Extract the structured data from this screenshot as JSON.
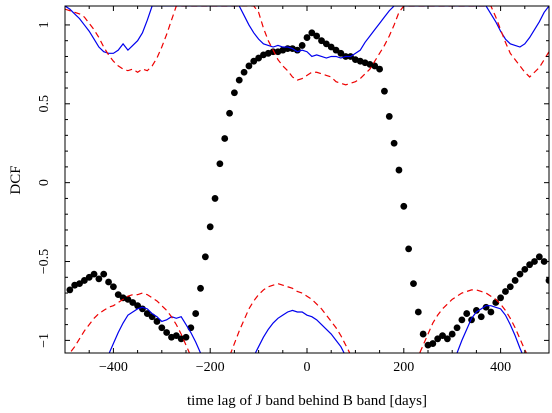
{
  "chart_data": {
    "type": "scatter",
    "title": "",
    "xlabel": "time lag of J band behind B band [days]",
    "ylabel": "DCF",
    "xlim": [
      -500,
      500
    ],
    "ylim": [
      -1.08,
      1.12
    ],
    "x_ticks": [
      -400,
      -200,
      0,
      200,
      400
    ],
    "x_tick_labels": [
      "−400",
      "−200",
      "0",
      "200",
      "400"
    ],
    "y_ticks": [
      -1,
      -0.5,
      0,
      0.5,
      1
    ],
    "y_tick_labels": [
      "−1",
      "−0.5",
      "0",
      "0.5",
      "1"
    ],
    "grid": false,
    "legend": "none",
    "series": [
      {
        "style": "points",
        "color": "#000000",
        "x": [
          -490,
          -480,
          -470,
          -460,
          -450,
          -440,
          -430,
          -420,
          -410,
          -400,
          -390,
          -380,
          -370,
          -360,
          -350,
          -340,
          -330,
          -320,
          -310,
          -300,
          -290,
          -280,
          -270,
          -260,
          -250,
          -240,
          -230,
          -220,
          -210,
          -200,
          -190,
          -180,
          -170,
          -160,
          -150,
          -140,
          -130,
          -120,
          -110,
          -100,
          -90,
          -80,
          -70,
          -60,
          -50,
          -40,
          -30,
          -20,
          -10,
          0,
          10,
          20,
          30,
          40,
          50,
          60,
          70,
          80,
          90,
          100,
          110,
          120,
          130,
          140,
          150,
          160,
          170,
          180,
          190,
          200,
          210,
          220,
          230,
          240,
          250,
          260,
          270,
          280,
          290,
          300,
          310,
          320,
          330,
          340,
          350,
          360,
          370,
          380,
          390,
          400,
          410,
          420,
          430,
          440,
          450,
          460,
          470,
          480,
          490,
          500
        ],
        "y": [
          -0.68,
          -0.65,
          -0.64,
          -0.62,
          -0.6,
          -0.58,
          -0.61,
          -0.58,
          -0.63,
          -0.66,
          -0.71,
          -0.73,
          -0.74,
          -0.76,
          -0.78,
          -0.8,
          -0.83,
          -0.85,
          -0.88,
          -0.92,
          -0.95,
          -0.98,
          -0.97,
          -0.99,
          -0.98,
          -0.92,
          -0.83,
          -0.67,
          -0.47,
          -0.28,
          -0.1,
          0.12,
          0.28,
          0.44,
          0.57,
          0.65,
          0.7,
          0.74,
          0.77,
          0.79,
          0.81,
          0.82,
          0.83,
          0.83,
          0.84,
          0.85,
          0.85,
          0.84,
          0.87,
          0.92,
          0.95,
          0.93,
          0.9,
          0.88,
          0.86,
          0.84,
          0.82,
          0.8,
          0.8,
          0.78,
          0.77,
          0.76,
          0.75,
          0.74,
          0.72,
          0.58,
          0.42,
          0.25,
          0.08,
          -0.15,
          -0.42,
          -0.64,
          -0.82,
          -0.96,
          -1.03,
          -1.02,
          -0.99,
          -0.97,
          -0.99,
          -0.96,
          -0.92,
          -0.87,
          -0.83,
          -0.87,
          -0.81,
          -0.85,
          -0.79,
          -0.82,
          -0.76,
          -0.73,
          -0.69,
          -0.66,
          -0.62,
          -0.58,
          -0.55,
          -0.52,
          -0.5,
          -0.47,
          -0.5,
          -0.62
        ]
      },
      {
        "style": "solid",
        "color": "#0000ee",
        "x": [
          -500,
          -490,
          -480,
          -470,
          -460,
          -450,
          -440,
          -430,
          -420,
          -410,
          -400,
          -390,
          -380,
          -370,
          -360,
          -350,
          -340,
          -330,
          -320,
          -310,
          -300,
          -290,
          -280,
          -270,
          -260,
          -250,
          -240,
          -230,
          -220,
          -210,
          -200,
          -190,
          -180,
          -170,
          -160,
          -150,
          -140,
          -130,
          -120,
          -110,
          -100,
          -90,
          -80,
          -70,
          -60,
          -50,
          -40,
          -30,
          -20,
          -10,
          0,
          10,
          20,
          30,
          40,
          50,
          60,
          70,
          80,
          90,
          100,
          110,
          120,
          130,
          140,
          150,
          160,
          170,
          180,
          190,
          200,
          210,
          220,
          230,
          240,
          250,
          260,
          270,
          280,
          290,
          300,
          310,
          320,
          330,
          340,
          350,
          360,
          370,
          380,
          390,
          400,
          410,
          420,
          430,
          440,
          450,
          460,
          470,
          480,
          490,
          500
        ],
        "y": [
          1.12,
          1.1,
          1.07,
          1.04,
          1.0,
          0.96,
          0.91,
          0.86,
          0.83,
          0.82,
          0.82,
          0.84,
          0.88,
          0.84,
          0.87,
          0.9,
          0.95,
          1.03,
          1.12,
          1.12,
          1.12,
          1.12,
          1.12,
          1.12,
          1.12,
          1.12,
          1.12,
          1.12,
          1.12,
          1.12,
          1.12,
          1.12,
          1.12,
          1.12,
          1.12,
          1.12,
          1.12,
          1.06,
          1.0,
          0.95,
          0.91,
          0.88,
          0.87,
          0.86,
          0.87,
          0.86,
          0.86,
          0.85,
          0.83,
          0.84,
          0.83,
          0.8,
          0.81,
          0.8,
          0.79,
          0.8,
          0.8,
          0.79,
          0.8,
          0.8,
          0.82,
          0.84,
          0.89,
          0.93,
          0.97,
          1.01,
          1.05,
          1.09,
          1.12,
          1.12,
          1.12,
          1.12,
          1.12,
          1.12,
          1.12,
          1.12,
          1.12,
          1.12,
          1.12,
          1.12,
          1.12,
          1.12,
          1.12,
          1.12,
          1.12,
          1.12,
          1.12,
          1.12,
          1.07,
          1.02,
          0.96,
          0.91,
          0.88,
          0.87,
          0.86,
          0.88,
          0.92,
          0.97,
          1.02,
          1.08,
          1.12
        ]
      },
      {
        "style": "dashed",
        "color": "#ee0000",
        "x": [
          -500,
          -490,
          -480,
          -470,
          -460,
          -450,
          -440,
          -430,
          -420,
          -410,
          -400,
          -390,
          -380,
          -370,
          -360,
          -350,
          -340,
          -330,
          -320,
          -310,
          -300,
          -290,
          -280,
          -270,
          -260,
          -250,
          -240,
          -230,
          -220,
          -210,
          -200,
          -190,
          -180,
          -170,
          -160,
          -150,
          -140,
          -130,
          -120,
          -110,
          -100,
          -90,
          -80,
          -70,
          -60,
          -50,
          -40,
          -30,
          -20,
          -10,
          0,
          10,
          20,
          30,
          40,
          50,
          60,
          70,
          80,
          90,
          100,
          110,
          120,
          130,
          140,
          150,
          160,
          170,
          180,
          190,
          200,
          210,
          220,
          230,
          240,
          250,
          260,
          270,
          280,
          290,
          300,
          310,
          320,
          330,
          340,
          350,
          360,
          370,
          380,
          390,
          400,
          410,
          420,
          430,
          440,
          450,
          460,
          470,
          480,
          490,
          500
        ],
        "y": [
          1.1,
          1.09,
          1.08,
          1.07,
          1.05,
          1.01,
          0.97,
          0.92,
          0.86,
          0.81,
          0.77,
          0.74,
          0.72,
          0.71,
          0.72,
          0.7,
          0.72,
          0.71,
          0.74,
          0.79,
          0.86,
          0.94,
          1.03,
          1.12,
          1.12,
          1.12,
          1.12,
          1.12,
          1.12,
          1.12,
          1.12,
          1.12,
          1.12,
          1.12,
          1.12,
          1.12,
          1.12,
          1.12,
          1.12,
          1.12,
          1.08,
          0.98,
          0.9,
          0.84,
          0.78,
          0.74,
          0.71,
          0.67,
          0.65,
          0.66,
          0.68,
          0.7,
          0.7,
          0.69,
          0.68,
          0.67,
          0.64,
          0.63,
          0.62,
          0.63,
          0.64,
          0.66,
          0.69,
          0.72,
          0.77,
          0.82,
          0.87,
          0.93,
          1.0,
          1.08,
          1.12,
          1.12,
          1.12,
          1.12,
          1.12,
          1.12,
          1.12,
          1.12,
          1.12,
          1.12,
          1.12,
          1.12,
          1.12,
          1.12,
          1.12,
          1.12,
          1.12,
          1.12,
          1.12,
          1.05,
          0.97,
          0.89,
          0.82,
          0.78,
          0.74,
          0.7,
          0.67,
          0.7,
          0.73,
          0.78,
          0.83
        ]
      },
      {
        "style": "solid",
        "color": "#0000ee",
        "x": [
          -500,
          -490,
          -480,
          -470,
          -460,
          -450,
          -440,
          -430,
          -420,
          -410,
          -400,
          -390,
          -380,
          -370,
          -360,
          -350,
          -340,
          -330,
          -320,
          -310,
          -300,
          -290,
          -280,
          -270,
          -260,
          -250,
          -240,
          -230,
          -220,
          -210,
          -200,
          -190,
          -180,
          -170,
          -160,
          -150,
          -140,
          -130,
          -120,
          -110,
          -100,
          -90,
          -80,
          -70,
          -60,
          -50,
          -40,
          -30,
          -20,
          -10,
          0,
          10,
          20,
          30,
          40,
          50,
          60,
          70,
          80,
          90,
          100,
          110,
          120,
          130,
          140,
          150,
          160,
          170,
          180,
          190,
          200,
          210,
          220,
          230,
          240,
          250,
          260,
          270,
          280,
          290,
          300,
          310,
          320,
          330,
          340,
          350,
          360,
          370,
          380,
          390,
          400,
          410,
          420,
          430,
          440,
          450,
          460,
          470,
          480,
          490,
          500
        ],
        "y": [
          -1.12,
          -1.12,
          -1.12,
          -1.12,
          -1.12,
          -1.12,
          -1.12,
          -1.12,
          -1.12,
          -1.09,
          -1.02,
          -0.95,
          -0.89,
          -0.84,
          -0.82,
          -0.8,
          -0.79,
          -0.8,
          -0.83,
          -0.85,
          -0.88,
          -0.87,
          -0.85,
          -0.86,
          -0.85,
          -0.9,
          -0.95,
          -1.01,
          -1.08,
          -1.12,
          -1.12,
          -1.12,
          -1.12,
          -1.12,
          -1.12,
          -1.12,
          -1.12,
          -1.12,
          -1.12,
          -1.1,
          -1.04,
          -0.98,
          -0.93,
          -0.89,
          -0.86,
          -0.84,
          -0.82,
          -0.81,
          -0.82,
          -0.82,
          -0.84,
          -0.85,
          -0.87,
          -0.9,
          -0.93,
          -0.96,
          -1.0,
          -1.04,
          -1.1,
          -1.12,
          -1.12,
          -1.12,
          -1.12,
          -1.12,
          -1.12,
          -1.12,
          -1.12,
          -1.12,
          -1.12,
          -1.12,
          -1.12,
          -1.12,
          -1.12,
          -1.12,
          -1.12,
          -1.12,
          -1.12,
          -1.12,
          -1.12,
          -1.12,
          -1.12,
          -1.08,
          -1.0,
          -0.93,
          -0.86,
          -0.82,
          -0.8,
          -0.78,
          -0.78,
          -0.79,
          -0.8,
          -0.84,
          -0.9,
          -0.97,
          -1.05,
          -1.12,
          -1.12,
          -1.12,
          -1.12,
          -1.12,
          -1.12
        ]
      },
      {
        "style": "dashed",
        "color": "#ee0000",
        "x": [
          -500,
          -490,
          -480,
          -470,
          -460,
          -450,
          -440,
          -430,
          -420,
          -410,
          -400,
          -390,
          -380,
          -370,
          -360,
          -350,
          -340,
          -330,
          -320,
          -310,
          -300,
          -290,
          -280,
          -270,
          -260,
          -250,
          -240,
          -230,
          -220,
          -210,
          -200,
          -190,
          -180,
          -170,
          -160,
          -150,
          -140,
          -130,
          -120,
          -110,
          -100,
          -90,
          -80,
          -70,
          -60,
          -50,
          -40,
          -30,
          -20,
          -10,
          0,
          10,
          20,
          30,
          40,
          50,
          60,
          70,
          80,
          90,
          100,
          110,
          120,
          130,
          140,
          150,
          160,
          170,
          180,
          190,
          200,
          210,
          220,
          230,
          240,
          250,
          260,
          270,
          280,
          290,
          300,
          310,
          320,
          330,
          340,
          350,
          360,
          370,
          380,
          390,
          400,
          410,
          420,
          430,
          440,
          450,
          460,
          470,
          480,
          490,
          500
        ],
        "y": [
          -1.12,
          -1.08,
          -1.04,
          -0.99,
          -0.94,
          -0.9,
          -0.86,
          -0.83,
          -0.81,
          -0.79,
          -0.78,
          -0.76,
          -0.74,
          -0.72,
          -0.71,
          -0.71,
          -0.7,
          -0.71,
          -0.73,
          -0.75,
          -0.78,
          -0.81,
          -0.85,
          -0.9,
          -0.96,
          -1.03,
          -1.1,
          -1.12,
          -1.12,
          -1.12,
          -1.12,
          -1.12,
          -1.12,
          -1.12,
          -1.1,
          -1.02,
          -0.94,
          -0.87,
          -0.8,
          -0.75,
          -0.71,
          -0.68,
          -0.66,
          -0.65,
          -0.64,
          -0.65,
          -0.66,
          -0.67,
          -0.69,
          -0.7,
          -0.72,
          -0.74,
          -0.77,
          -0.8,
          -0.84,
          -0.88,
          -0.92,
          -0.97,
          -1.03,
          -1.09,
          -1.12,
          -1.12,
          -1.12,
          -1.12,
          -1.12,
          -1.12,
          -1.12,
          -1.12,
          -1.12,
          -1.12,
          -1.12,
          -1.12,
          -1.12,
          -1.1,
          -1.03,
          -0.96,
          -0.89,
          -0.84,
          -0.8,
          -0.77,
          -0.74,
          -0.72,
          -0.7,
          -0.69,
          -0.68,
          -0.68,
          -0.69,
          -0.7,
          -0.72,
          -0.74,
          -0.77,
          -0.81,
          -0.86,
          -0.92,
          -0.99,
          -1.06,
          -1.12,
          -1.12,
          -1.12,
          -1.12,
          -1.12
        ]
      }
    ]
  }
}
